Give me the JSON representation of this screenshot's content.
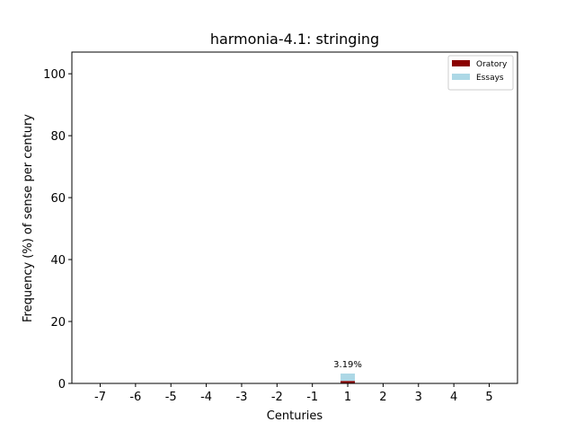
{
  "chart_data": {
    "type": "bar",
    "stacked": true,
    "title": "harmonia-4.1: stringing",
    "xlabel": "Centuries",
    "ylabel": "Frequency (%) of sense per century",
    "categories": [
      "-7",
      "-6",
      "-5",
      "-4",
      "-3",
      "-2",
      "-1",
      "1",
      "2",
      "3",
      "4",
      "5"
    ],
    "ylim": [
      0,
      107
    ],
    "yticks": [
      "0",
      "20",
      "40",
      "60",
      "80",
      "100"
    ],
    "series": [
      {
        "name": "Oratory",
        "color": "#8b0000",
        "values": [
          0,
          0,
          0,
          0,
          0,
          0,
          0,
          0.8,
          0,
          0,
          0,
          0
        ]
      },
      {
        "name": "Essays",
        "color": "#add8e6",
        "values": [
          0,
          0,
          0,
          0,
          0,
          0,
          0,
          2.39,
          0,
          0,
          0,
          0
        ]
      }
    ],
    "data_labels": [
      {
        "category": "1",
        "text": "3.19%"
      }
    ],
    "legend": "top-right",
    "grid": false
  }
}
